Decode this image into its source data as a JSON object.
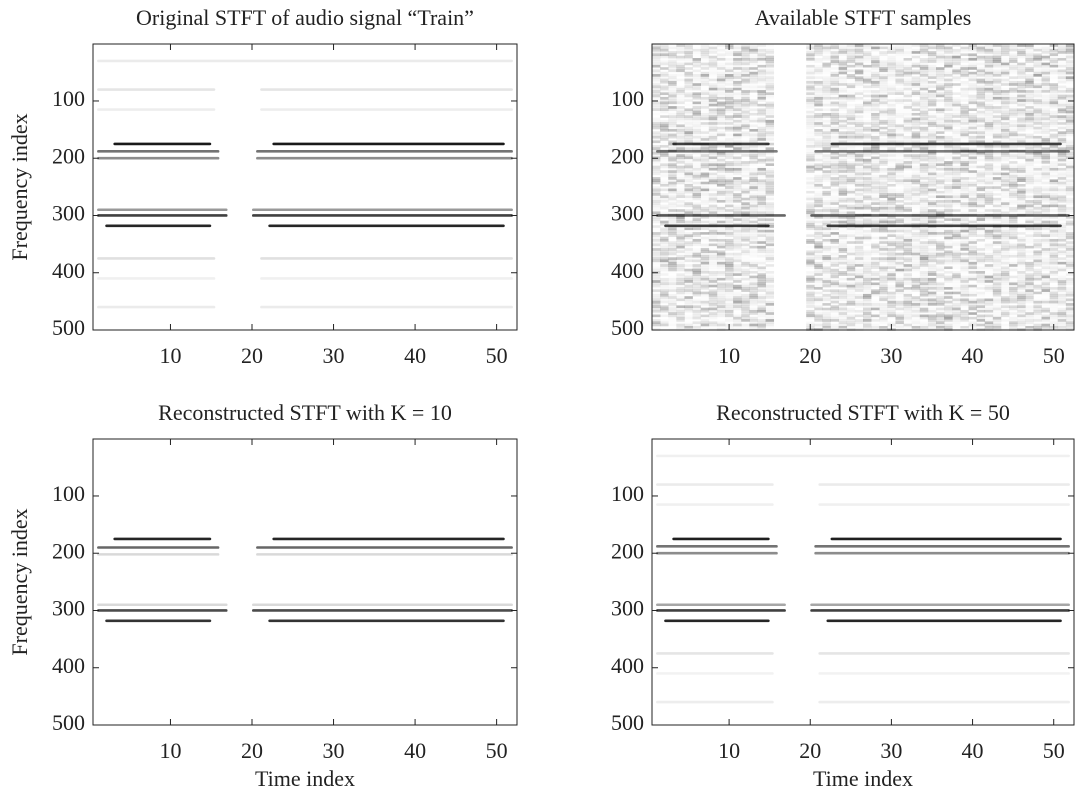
{
  "chart_data": [
    {
      "type": "heatmap",
      "title": "Original STFT of audio signal “Train”",
      "ylabel": "Frequency index",
      "xlim": [
        0.5,
        52.5
      ],
      "ylim": [
        500,
        0.5
      ],
      "xticks": [
        10,
        20,
        30,
        40,
        50
      ],
      "yticks": [
        100,
        200,
        300,
        400,
        500
      ],
      "color": "#000000",
      "bands": [
        {
          "y": 30,
          "value": 0.08,
          "x": [
            [
              1,
              52
            ]
          ]
        },
        {
          "y": 80,
          "value": 0.1,
          "x": [
            [
              1,
              15.5
            ],
            [
              21,
              52
            ]
          ]
        },
        {
          "y": 115,
          "value": 0.07,
          "x": [
            [
              1,
              15.5
            ],
            [
              21,
              52
            ]
          ]
        },
        {
          "y": 175,
          "value": 0.9,
          "x": [
            [
              3,
              15
            ],
            [
              22.5,
              51
            ]
          ]
        },
        {
          "y": 188,
          "value": 0.55,
          "x": [
            [
              1,
              16
            ],
            [
              20.5,
              52
            ]
          ]
        },
        {
          "y": 200,
          "value": 0.45,
          "x": [
            [
              1,
              16
            ],
            [
              20.5,
              52
            ]
          ]
        },
        {
          "y": 290,
          "value": 0.4,
          "x": [
            [
              1,
              17
            ],
            [
              20,
              52
            ]
          ]
        },
        {
          "y": 300,
          "value": 0.75,
          "x": [
            [
              1,
              17
            ],
            [
              20,
              52
            ]
          ]
        },
        {
          "y": 318,
          "value": 0.85,
          "x": [
            [
              2,
              15
            ],
            [
              22,
              51
            ]
          ]
        },
        {
          "y": 375,
          "value": 0.12,
          "x": [
            [
              1,
              15.5
            ],
            [
              21,
              52
            ]
          ]
        },
        {
          "y": 410,
          "value": 0.06,
          "x": [
            [
              1,
              15.5
            ],
            [
              21,
              52
            ]
          ]
        },
        {
          "y": 460,
          "value": 0.08,
          "x": [
            [
              1,
              15.5
            ],
            [
              21,
              52
            ]
          ]
        }
      ]
    },
    {
      "type": "heatmap",
      "title": "Available STFT samples",
      "xlim": [
        0.5,
        52.5
      ],
      "ylim": [
        500,
        0.5
      ],
      "xticks": [
        10,
        20,
        30,
        40,
        50
      ],
      "yticks": [
        100,
        200,
        300,
        400,
        500
      ],
      "color": "#000000",
      "noise": {
        "level": 0.22,
        "x": [
          [
            0.5,
            15.5
          ],
          [
            19.5,
            52.5
          ]
        ]
      },
      "bands": [
        {
          "y": 175,
          "value": 0.75,
          "x": [
            [
              3,
              15
            ],
            [
              22.5,
              51
            ]
          ]
        },
        {
          "y": 188,
          "value": 0.5,
          "x": [
            [
              1,
              16
            ],
            [
              20.5,
              52
            ]
          ]
        },
        {
          "y": 300,
          "value": 0.6,
          "x": [
            [
              1,
              17
            ],
            [
              20,
              52
            ]
          ]
        },
        {
          "y": 318,
          "value": 0.75,
          "x": [
            [
              2,
              15
            ],
            [
              22,
              51
            ]
          ]
        }
      ]
    },
    {
      "type": "heatmap",
      "title": "Reconstructed STFT with K = 10",
      "xlabel": "Time index",
      "ylabel": "Frequency index",
      "xlim": [
        0.5,
        52.5
      ],
      "ylim": [
        500,
        0.5
      ],
      "xticks": [
        10,
        20,
        30,
        40,
        50
      ],
      "yticks": [
        100,
        200,
        300,
        400,
        500
      ],
      "color": "#000000",
      "bands": [
        {
          "y": 175,
          "value": 0.85,
          "x": [
            [
              3,
              15
            ],
            [
              22.5,
              51
            ]
          ]
        },
        {
          "y": 190,
          "value": 0.6,
          "x": [
            [
              1,
              16
            ],
            [
              20.5,
              52
            ]
          ]
        },
        {
          "y": 202,
          "value": 0.15,
          "x": [
            [
              1,
              16
            ],
            [
              20.5,
              52
            ]
          ]
        },
        {
          "y": 290,
          "value": 0.15,
          "x": [
            [
              1,
              17
            ],
            [
              20,
              52
            ]
          ]
        },
        {
          "y": 300,
          "value": 0.7,
          "x": [
            [
              1,
              17
            ],
            [
              20,
              52
            ]
          ]
        },
        {
          "y": 318,
          "value": 0.8,
          "x": [
            [
              2,
              15
            ],
            [
              22,
              51
            ]
          ]
        }
      ]
    },
    {
      "type": "heatmap",
      "title": "Reconstructed STFT with K = 50",
      "xlabel": "Time index",
      "xlim": [
        0.5,
        52.5
      ],
      "ylim": [
        500,
        0.5
      ],
      "xticks": [
        10,
        20,
        30,
        40,
        50
      ],
      "yticks": [
        100,
        200,
        300,
        400,
        500
      ],
      "color": "#000000",
      "bands": [
        {
          "y": 30,
          "value": 0.06,
          "x": [
            [
              1,
              52
            ]
          ]
        },
        {
          "y": 80,
          "value": 0.08,
          "x": [
            [
              1,
              15.5
            ],
            [
              21,
              52
            ]
          ]
        },
        {
          "y": 115,
          "value": 0.06,
          "x": [
            [
              1,
              15.5
            ],
            [
              21,
              52
            ]
          ]
        },
        {
          "y": 175,
          "value": 0.88,
          "x": [
            [
              3,
              15
            ],
            [
              22.5,
              51
            ]
          ]
        },
        {
          "y": 188,
          "value": 0.55,
          "x": [
            [
              1,
              16
            ],
            [
              20.5,
              52
            ]
          ]
        },
        {
          "y": 200,
          "value": 0.45,
          "x": [
            [
              1,
              16
            ],
            [
              20.5,
              52
            ]
          ]
        },
        {
          "y": 290,
          "value": 0.35,
          "x": [
            [
              1,
              17
            ],
            [
              20,
              52
            ]
          ]
        },
        {
          "y": 300,
          "value": 0.75,
          "x": [
            [
              1,
              17
            ],
            [
              20,
              52
            ]
          ]
        },
        {
          "y": 318,
          "value": 0.85,
          "x": [
            [
              2,
              15
            ],
            [
              22,
              51
            ]
          ]
        },
        {
          "y": 375,
          "value": 0.1,
          "x": [
            [
              1,
              15.5
            ],
            [
              21,
              52
            ]
          ]
        },
        {
          "y": 410,
          "value": 0.05,
          "x": [
            [
              1,
              15.5
            ],
            [
              21,
              52
            ]
          ]
        },
        {
          "y": 460,
          "value": 0.07,
          "x": [
            [
              1,
              15.5
            ],
            [
              21,
              52
            ]
          ]
        }
      ]
    }
  ]
}
